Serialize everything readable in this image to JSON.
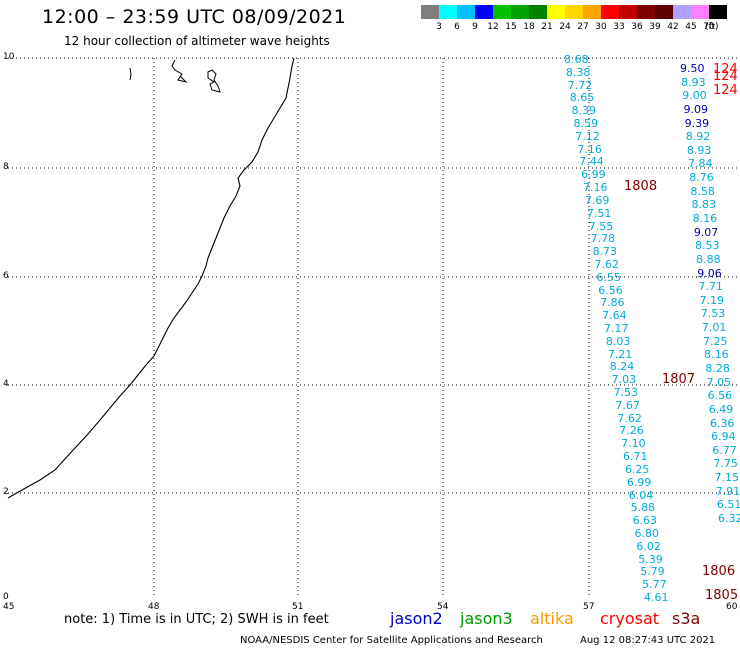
{
  "title": "12:00 – 23:59 UTC 08/09/2021",
  "subtitle": "12 hour collection of altimeter wave heights",
  "colorbar": {
    "unit": "(ft)",
    "colors": [
      "#7f7f7f",
      "#00ffff",
      "#00bfff",
      "#0000ff",
      "#00c000",
      "#00a000",
      "#008000",
      "#ffff00",
      "#ffd700",
      "#ffa500",
      "#ff0000",
      "#c00000",
      "#800000",
      "#600000",
      "#b0a0ff",
      "#ff80ff",
      "#000000"
    ],
    "labels": [
      "3",
      "6",
      "9",
      "12",
      "15",
      "18",
      "21",
      "24",
      "27",
      "30",
      "33",
      "36",
      "39",
      "42",
      "45",
      "70"
    ]
  },
  "axes": {
    "y_ticks": [
      "10",
      "8",
      "6",
      "4",
      "2",
      "0"
    ],
    "x_ticks": [
      "45",
      "48",
      "51",
      "54",
      "57",
      "60"
    ]
  },
  "satellites": [
    {
      "name": "jason2",
      "color": "#0000cc"
    },
    {
      "name": "jason3",
      "color": "#009900"
    },
    {
      "name": "altika",
      "color": "#ff9900"
    },
    {
      "name": "cryosat",
      "color": "#ff0000"
    },
    {
      "name": "s3a",
      "color": "#800000"
    }
  ],
  "note": "note:  1) Time is in UTC;  2) SWH is in feet",
  "footer": {
    "center": "NOAA/NESDIS Center for Satellite Applications and Research",
    "timestamp": "Aug 12 08:27:43 UTC 2021"
  },
  "track_a": [
    "8.68",
    "8.38",
    "7.72",
    "8.65",
    "8.39",
    "8.59",
    "7.12",
    "7.16",
    "7.44",
    "6.99",
    "7.16",
    "7.69",
    "7.51",
    "7.55",
    "7.78",
    "8.73",
    "7.62",
    "6.55",
    "6.56",
    "7.86",
    "7.64",
    "7.17",
    "8.03",
    "7.21",
    "8.24",
    "7.03",
    "7.53",
    "7.67",
    "7.62",
    "7.26",
    "7.10",
    "6.71",
    "6.25",
    "6.99",
    "6.04",
    "5.88",
    "6.63",
    "6.80",
    "6.02",
    "5.39",
    "5.79",
    "5.77",
    "4.61"
  ],
  "track_b": [
    {
      "v": "9.50",
      "c": "#0000aa"
    },
    {
      "v": "8.93",
      "c": "#00aadd"
    },
    {
      "v": "9.00",
      "c": "#00aadd"
    },
    {
      "v": "9.09",
      "c": "#0000aa"
    },
    {
      "v": "9.39",
      "c": "#0000aa"
    },
    {
      "v": "8.92",
      "c": "#00aadd"
    },
    {
      "v": "8.93",
      "c": "#00aadd"
    },
    {
      "v": "7.84",
      "c": "#00aadd"
    },
    {
      "v": "8.76",
      "c": "#00aadd"
    },
    {
      "v": "8.58",
      "c": "#00aadd"
    },
    {
      "v": "8.83",
      "c": "#00aadd"
    },
    {
      "v": "8.16",
      "c": "#00aadd"
    },
    {
      "v": "9.07",
      "c": "#0000aa"
    },
    {
      "v": "8.53",
      "c": "#00aadd"
    },
    {
      "v": "8.88",
      "c": "#00aadd"
    },
    {
      "v": "9.06",
      "c": "#0000aa"
    },
    {
      "v": "7.71",
      "c": "#00aadd"
    },
    {
      "v": "7.19",
      "c": "#00aadd"
    },
    {
      "v": "7.53",
      "c": "#00aadd"
    },
    {
      "v": "7.01",
      "c": "#00aadd"
    },
    {
      "v": "7.25",
      "c": "#00aadd"
    },
    {
      "v": "8.16",
      "c": "#00aadd"
    },
    {
      "v": "8.28",
      "c": "#00aadd"
    },
    {
      "v": "7.05",
      "c": "#00aadd"
    },
    {
      "v": "6.56",
      "c": "#00aadd"
    },
    {
      "v": "6.49",
      "c": "#00aadd"
    },
    {
      "v": "6.36",
      "c": "#00aadd"
    },
    {
      "v": "6.94",
      "c": "#00aadd"
    },
    {
      "v": "6.77",
      "c": "#00aadd"
    },
    {
      "v": "7.75",
      "c": "#00aadd"
    },
    {
      "v": "7.15",
      "c": "#00aadd"
    },
    {
      "v": "7.91",
      "c": "#00aadd"
    },
    {
      "v": "6.51",
      "c": "#00aadd"
    },
    {
      "v": "6.32",
      "c": "#00aadd"
    }
  ],
  "cycles": [
    {
      "v": "1808",
      "c": "#800000"
    },
    {
      "v": "1807",
      "c": "#800000"
    },
    {
      "v": "1806",
      "c": "#800000"
    },
    {
      "v": "1805",
      "c": "#800000"
    },
    {
      "v": "124",
      "c": "#ff0000"
    },
    {
      "v": "124",
      "c": "#ff0000"
    },
    {
      "v": "124",
      "c": "#ff0000"
    }
  ]
}
